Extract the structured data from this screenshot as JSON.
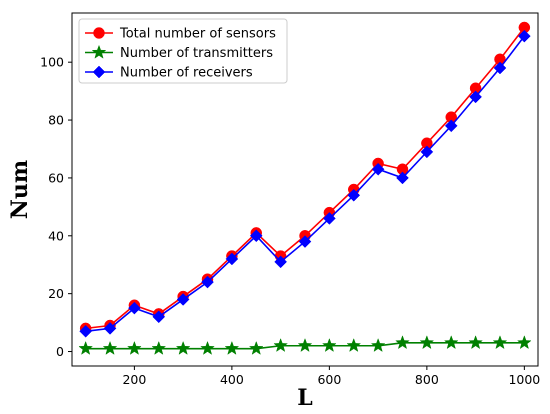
{
  "chart_data": {
    "type": "line",
    "title": "",
    "xlabel": "L",
    "ylabel": "Num",
    "xlim": [
      72,
      1028
    ],
    "ylim": [
      -5,
      117
    ],
    "xticks": [
      200,
      400,
      600,
      800,
      1000
    ],
    "yticks": [
      0,
      20,
      40,
      60,
      80,
      100
    ],
    "grid": false,
    "legend_position": "top-left",
    "x": [
      100,
      150,
      200,
      250,
      300,
      350,
      400,
      450,
      500,
      550,
      600,
      650,
      700,
      750,
      800,
      850,
      900,
      950,
      1000
    ],
    "series": [
      {
        "name": "Total number of sensors",
        "color": "#ff0000",
        "line_color": "#ff0000",
        "marker": "circle",
        "values": [
          8,
          9,
          16,
          13,
          19,
          25,
          33,
          41,
          33,
          40,
          48,
          56,
          65,
          63,
          72,
          81,
          91,
          101,
          112
        ]
      },
      {
        "name": "Number of transmitters",
        "color": "#008000",
        "line_color": "#008000",
        "marker": "star",
        "values": [
          1,
          1,
          1,
          1,
          1,
          1,
          1,
          1,
          2,
          2,
          2,
          2,
          2,
          3,
          3,
          3,
          3,
          3,
          3
        ]
      },
      {
        "name": "Number of receivers",
        "color": "#0000ff",
        "line_color": "#0000ff",
        "marker": "diamond",
        "values": [
          7,
          8,
          15,
          12,
          18,
          24,
          32,
          40,
          31,
          38,
          46,
          54,
          63,
          60,
          69,
          78,
          88,
          98,
          109
        ]
      }
    ]
  }
}
